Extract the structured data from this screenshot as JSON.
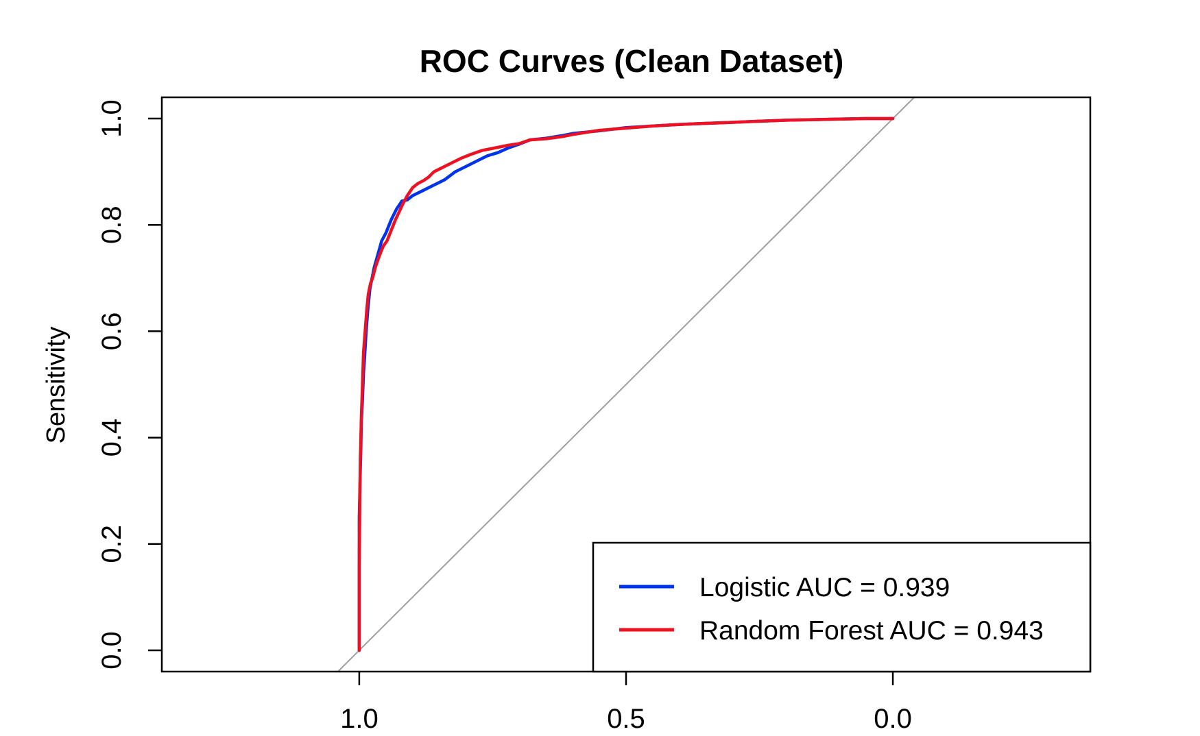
{
  "chart_data": {
    "type": "line",
    "title": "ROC Curves (Clean Dataset)",
    "xlabel": "",
    "ylabel": "Sensitivity",
    "x_axis": {
      "reversed": true,
      "xlim": [
        1.37,
        -0.37
      ],
      "ticks": [
        1.0,
        0.5,
        0.0
      ],
      "tick_labels": [
        "1.0",
        "0.5",
        "0.0"
      ]
    },
    "y_axis": {
      "ylim": [
        -0.04,
        1.04
      ],
      "ticks": [
        0.0,
        0.2,
        0.4,
        0.6,
        0.8,
        1.0
      ],
      "tick_labels": [
        "0.0",
        "0.2",
        "0.4",
        "0.6",
        "0.8",
        "1.0"
      ]
    },
    "grid": false,
    "reference_line": {
      "color": "#a0a0a0",
      "from": [
        1.04,
        -0.04
      ],
      "to": [
        -0.04,
        1.04
      ]
    },
    "legend": {
      "position": "bottom-right",
      "entries": [
        "Logistic AUC = 0.939",
        "Random Forest AUC = 0.943"
      ]
    },
    "series": [
      {
        "name": "Logistic AUC = 0.939",
        "color": "#0033ee",
        "specificity": [
          1.0,
          1.0,
          0.998,
          0.997,
          0.996,
          0.994,
          0.992,
          0.99,
          0.987,
          0.984,
          0.98,
          0.976,
          0.972,
          0.965,
          0.958,
          0.95,
          0.94,
          0.93,
          0.92,
          0.91,
          0.9,
          0.88,
          0.86,
          0.84,
          0.82,
          0.8,
          0.78,
          0.76,
          0.74,
          0.72,
          0.7,
          0.68,
          0.65,
          0.62,
          0.6,
          0.55,
          0.5,
          0.45,
          0.4,
          0.35,
          0.3,
          0.25,
          0.2,
          0.15,
          0.1,
          0.05,
          0.0
        ],
        "sensitivity": [
          0.0,
          0.25,
          0.34,
          0.38,
          0.43,
          0.47,
          0.52,
          0.55,
          0.6,
          0.64,
          0.68,
          0.7,
          0.72,
          0.745,
          0.77,
          0.785,
          0.81,
          0.83,
          0.845,
          0.847,
          0.855,
          0.865,
          0.875,
          0.885,
          0.9,
          0.91,
          0.92,
          0.93,
          0.936,
          0.945,
          0.952,
          0.96,
          0.963,
          0.968,
          0.972,
          0.977,
          0.983,
          0.986,
          0.989,
          0.991,
          0.993,
          0.995,
          0.997,
          0.998,
          0.999,
          1.0,
          1.0
        ]
      },
      {
        "name": "Random Forest AUC = 0.943",
        "color": "#ee1122",
        "specificity": [
          1.0,
          1.0,
          0.999,
          0.998,
          0.996,
          0.994,
          0.992,
          0.989,
          0.986,
          0.983,
          0.979,
          0.975,
          0.97,
          0.963,
          0.955,
          0.948,
          0.94,
          0.932,
          0.925,
          0.918,
          0.91,
          0.9,
          0.89,
          0.88,
          0.87,
          0.86,
          0.85,
          0.83,
          0.81,
          0.79,
          0.77,
          0.75,
          0.72,
          0.7,
          0.68,
          0.65,
          0.62,
          0.6,
          0.55,
          0.5,
          0.45,
          0.4,
          0.35,
          0.3,
          0.25,
          0.2,
          0.15,
          0.1,
          0.05,
          0.0
        ],
        "sensitivity": [
          0.0,
          0.16,
          0.28,
          0.36,
          0.44,
          0.5,
          0.56,
          0.6,
          0.64,
          0.67,
          0.69,
          0.7,
          0.72,
          0.74,
          0.76,
          0.77,
          0.79,
          0.81,
          0.825,
          0.84,
          0.855,
          0.87,
          0.878,
          0.883,
          0.89,
          0.9,
          0.905,
          0.915,
          0.925,
          0.933,
          0.94,
          0.944,
          0.95,
          0.953,
          0.96,
          0.962,
          0.966,
          0.97,
          0.978,
          0.982,
          0.986,
          0.989,
          0.991,
          0.993,
          0.995,
          0.997,
          0.998,
          0.999,
          1.0,
          1.0
        ]
      }
    ]
  }
}
